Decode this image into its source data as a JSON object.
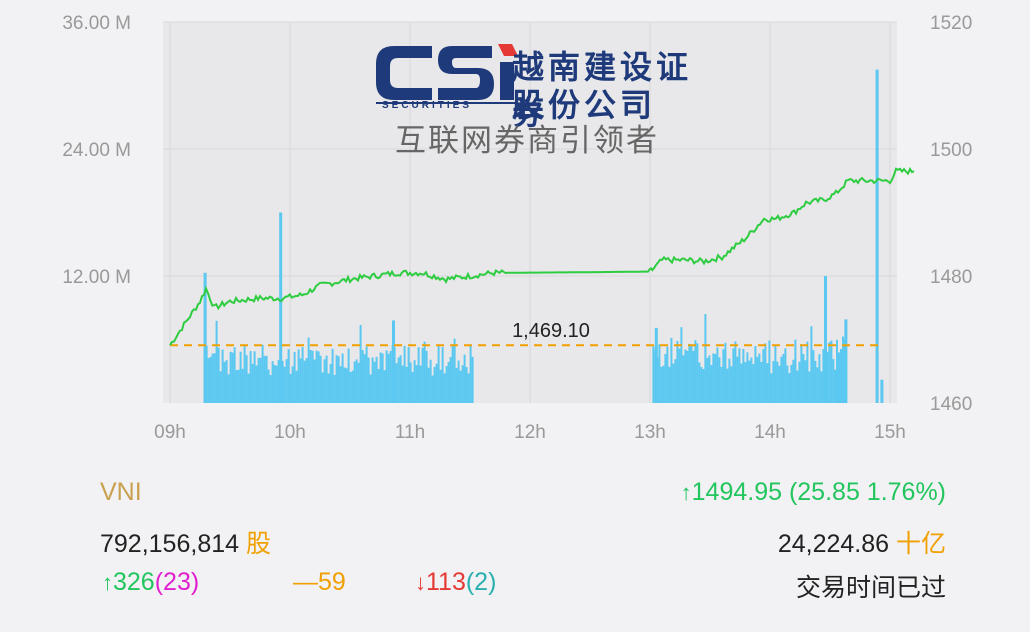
{
  "logo": {
    "brand": "CSI",
    "sub": "SECURITIES",
    "cn_line1": "越南建设证券",
    "cn_line2": "股份公司",
    "tagline": "互联网券商引领者"
  },
  "chart_data": {
    "type": "line",
    "x_ticks": [
      "09h",
      "10h",
      "11h",
      "12h",
      "13h",
      "14h",
      "15h"
    ],
    "left_axis": {
      "ticks": [
        "36.00 M",
        "24.00 M",
        "12.00 M"
      ],
      "range": [
        0,
        36
      ]
    },
    "right_axis": {
      "ticks": [
        "1520",
        "1500",
        "1480",
        "1460"
      ],
      "range": [
        1460,
        1520
      ]
    },
    "reference": {
      "value": 1469.1,
      "label": "1,469.10"
    },
    "series": [
      {
        "type": "line",
        "axis": "right",
        "color": "#2ecc40",
        "points": [
          [
            0,
            1469.1
          ],
          [
            0.25,
            1476
          ],
          [
            0.3,
            1478
          ],
          [
            0.37,
            1475
          ],
          [
            0.5,
            1476
          ],
          [
            0.75,
            1476.5
          ],
          [
            0.93,
            1476.5
          ],
          [
            1.1,
            1477
          ],
          [
            1.25,
            1478.5
          ],
          [
            1.5,
            1479.5
          ],
          [
            1.7,
            1480
          ],
          [
            1.9,
            1480.5
          ],
          [
            2.1,
            1480.5
          ],
          [
            2.3,
            1479.5
          ],
          [
            2.5,
            1480
          ],
          [
            2.7,
            1480.5
          ],
          [
            2.78,
            1480.5
          ],
          [
            3.5,
            1480.6
          ],
          [
            4.0,
            1480.7
          ],
          [
            4.02,
            1481
          ],
          [
            4.1,
            1482.5
          ],
          [
            4.3,
            1482.5
          ],
          [
            4.45,
            1482.3
          ],
          [
            4.6,
            1483
          ],
          [
            4.7,
            1484.5
          ],
          [
            4.8,
            1486
          ],
          [
            4.95,
            1489
          ],
          [
            5.05,
            1489
          ],
          [
            5.2,
            1490
          ],
          [
            5.3,
            1491.5
          ],
          [
            5.45,
            1492
          ],
          [
            5.55,
            1493
          ],
          [
            5.65,
            1495
          ],
          [
            5.75,
            1495
          ],
          [
            5.95,
            1495
          ],
          [
            6.0,
            1495
          ],
          [
            6.05,
            1496.5
          ],
          [
            6.2,
            1496.5
          ]
        ]
      },
      {
        "type": "bar",
        "axis": "left",
        "color": "#5ac8f0",
        "name": "",
        "spikes": [
          [
            0.28,
            12.3
          ],
          [
            0.91,
            18.0
          ],
          [
            1.85,
            7.8
          ],
          [
            4.04,
            7.1
          ],
          [
            5.45,
            12.0
          ],
          [
            5.62,
            7.9
          ],
          [
            5.88,
            31.5
          ],
          [
            5.92,
            2.2
          ]
        ],
        "base_segments": [
          [
            0.28,
            2.52,
            3.7
          ],
          [
            4.02,
            5.55,
            4.0
          ],
          [
            5.55,
            5.62,
            4.5
          ]
        ]
      }
    ],
    "title": "",
    "xlabel": "",
    "ylabel": "",
    "grid": true
  },
  "summary": {
    "index_name": "VNI",
    "volume": "792,156,814",
    "volume_unit": "股",
    "index_value": "1494.95 (25.85 1.76%)",
    "value_amount": "24,224.86",
    "value_unit": "十亿",
    "advances": "326",
    "advances_ceiling": "(23)",
    "unchanged": "59",
    "declines": "113",
    "declines_floor": "(2)",
    "status": "交易时间已过",
    "up_arrow": "↑",
    "down_arrow": "↓",
    "dash": "—"
  }
}
